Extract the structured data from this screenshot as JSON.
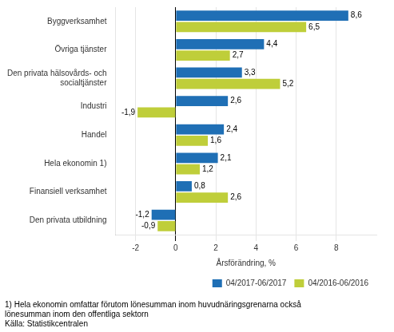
{
  "chart_data": {
    "type": "bar",
    "orientation": "horizontal",
    "categories": [
      "Byggverksamhet",
      "Övriga tjänster",
      "Den privata hälsovårds- och\nsocialtjänster",
      "Industri",
      "Handel",
      "Hela ekonomin 1)",
      "Finansiell verksamhet",
      "Den privata utbildning"
    ],
    "series": [
      {
        "name": "04/2017-06/2017",
        "color": "#1F6FB5",
        "values": [
          8.6,
          4.4,
          3.3,
          2.6,
          2.4,
          2.1,
          0.8,
          -1.2
        ],
        "value_labels": [
          "8,6",
          "4,4",
          "3,3",
          "2,6",
          "2,4",
          "2,1",
          "0,8",
          "-1,2"
        ]
      },
      {
        "name": "04/2016-06/2016",
        "color": "#BFCE3A",
        "values": [
          6.5,
          2.7,
          5.2,
          -1.9,
          1.6,
          1.2,
          2.6,
          -0.9
        ],
        "value_labels": [
          "6,5",
          "2,7",
          "5,2",
          "-1,9",
          "1,6",
          "1,2",
          "2,6",
          "-0,9"
        ]
      }
    ],
    "xlabel": "Årsförändring, %",
    "xlim": [
      -3,
      10
    ],
    "xticks": [
      -2,
      0,
      2,
      4,
      6,
      8
    ],
    "grid": true,
    "legend": "lower right",
    "data_labels": true,
    "annotations": [
      "1) Hela ekonomin omfattar förutom lönesumman inom huvudnäringsgrenarna också",
      "lönesumman inom den offentliga sektorn",
      "Källa: Statistikcentralen"
    ]
  }
}
